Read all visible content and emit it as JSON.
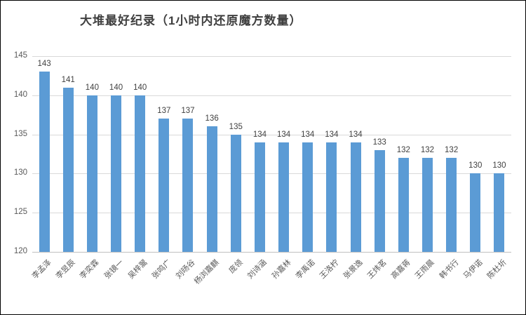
{
  "title": "大堆最好纪录（1小时内还原魔方数量）",
  "chart_data": {
    "type": "bar",
    "title": "大堆最好纪录（1小时内还原魔方数量）",
    "categories": [
      "李孟泽",
      "李昱辰",
      "李奕霖",
      "张镜一",
      "吴梓翯",
      "张鸣广",
      "刘旸谷",
      "杨浏嘉麒",
      "庞领",
      "刘诗涵",
      "孙嘉林",
      "李禹诺",
      "王洛柠",
      "张景逸",
      "王炜茗",
      "高嘉蒋",
      "王雨晨",
      "韩书行",
      "马伊诺",
      "陈杜圻"
    ],
    "values": [
      143,
      141,
      140,
      140,
      140,
      137,
      137,
      136,
      135,
      134,
      134,
      134,
      134,
      134,
      133,
      132,
      132,
      132,
      130,
      130
    ],
    "xlabel": "",
    "ylabel": "",
    "ylim": [
      120,
      145
    ],
    "yticks": [
      120,
      125,
      130,
      135,
      140,
      145
    ],
    "grid": true,
    "data_labels": true,
    "legend": "none",
    "bar_color": "#5b9bd5"
  },
  "colors": {
    "bar": "#5b9bd5",
    "gridline": "#d9d9d9",
    "axis_line": "#bfbfbf",
    "axis_text": "#595959",
    "title_text": "#3f3f3f",
    "frame_border": "#000000"
  }
}
